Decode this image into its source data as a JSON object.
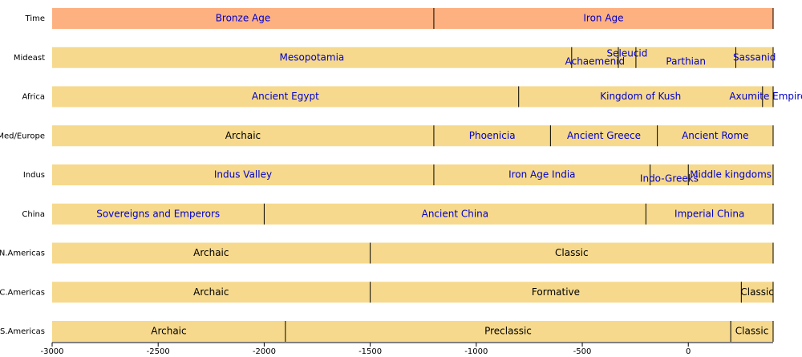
{
  "chart_data": {
    "type": "timeline",
    "xlim": [
      -3000,
      400
    ],
    "xticks": [
      -3000,
      -2500,
      -2000,
      -1500,
      -1000,
      -500,
      0
    ],
    "rows": [
      {
        "name": "Time",
        "color": "#fdb181",
        "segments": [
          {
            "label": "Bronze Age",
            "start": -3000,
            "end": -1200,
            "color": "#0000cc"
          },
          {
            "label": "Iron Age",
            "start": -1200,
            "end": 400,
            "color": "#0000cc"
          }
        ]
      },
      {
        "name": "Mideast",
        "color": "#f6d98c",
        "segments": [
          {
            "label": "Mesopotamia",
            "start": -3000,
            "end": -550,
            "color": "#0000cc"
          },
          {
            "label": "Achaemenid",
            "start": -550,
            "end": -330,
            "color": "#0000cc"
          },
          {
            "label": "Seleucid",
            "start": -330,
            "end": -247,
            "color": "#0000cc"
          },
          {
            "label": "Parthian",
            "start": -247,
            "end": 224,
            "color": "#0000cc"
          },
          {
            "label": "Sassanid",
            "start": 224,
            "end": 400,
            "color": "#0000cc"
          }
        ]
      },
      {
        "name": "Africa",
        "color": "#f6d98c",
        "segments": [
          {
            "label": "Ancient Egypt",
            "start": -3000,
            "end": -800,
            "color": "#0000cc"
          },
          {
            "label": "Kingdom of Kush",
            "start": -800,
            "end": 350,
            "color": "#0000cc"
          },
          {
            "label": "Axumite Empire",
            "start": 350,
            "end": 400,
            "color": "#0000cc"
          }
        ]
      },
      {
        "name": "Med/Europe",
        "color": "#f6d98c",
        "segments": [
          {
            "label": "Archaic",
            "start": -3000,
            "end": -1200,
            "color": "#000000"
          },
          {
            "label": "Phoenicia",
            "start": -1200,
            "end": -650,
            "color": "#0000cc"
          },
          {
            "label": "Ancient Greece",
            "start": -650,
            "end": -146,
            "color": "#0000cc"
          },
          {
            "label": "Ancient Rome",
            "start": -146,
            "end": 400,
            "color": "#0000cc"
          }
        ]
      },
      {
        "name": "Indus",
        "color": "#f6d98c",
        "segments": [
          {
            "label": "Indus Valley",
            "start": -3000,
            "end": -1200,
            "color": "#0000cc"
          },
          {
            "label": "Iron Age India",
            "start": -1200,
            "end": -180,
            "color": "#0000cc"
          },
          {
            "label": "Indo-Greeks",
            "start": -180,
            "end": 0,
            "color": "#0000cc"
          },
          {
            "label": "Middle kingdoms",
            "start": 0,
            "end": 400,
            "color": "#0000cc"
          }
        ]
      },
      {
        "name": "China",
        "color": "#f6d98c",
        "segments": [
          {
            "label": "Sovereigns and Emperors",
            "start": -3000,
            "end": -2000,
            "color": "#0000cc"
          },
          {
            "label": "Ancient China",
            "start": -2000,
            "end": -200,
            "color": "#0000cc"
          },
          {
            "label": "Imperial China",
            "start": -200,
            "end": 400,
            "color": "#0000cc"
          }
        ]
      },
      {
        "name": "N.Americas",
        "color": "#f6d98c",
        "segments": [
          {
            "label": "Archaic",
            "start": -3000,
            "end": -1500,
            "color": "#000000"
          },
          {
            "label": "Classic",
            "start": -1500,
            "end": 400,
            "color": "#000000"
          }
        ]
      },
      {
        "name": "C.Americas",
        "color": "#f6d98c",
        "segments": [
          {
            "label": "Archaic",
            "start": -3000,
            "end": -1500,
            "color": "#000000"
          },
          {
            "label": "Formative",
            "start": -1500,
            "end": 250,
            "color": "#000000"
          },
          {
            "label": "Classic",
            "start": 250,
            "end": 400,
            "color": "#000000"
          }
        ]
      },
      {
        "name": "S.Americas",
        "color": "#f6d98c",
        "segments": [
          {
            "label": "Archaic",
            "start": -3000,
            "end": -1900,
            "color": "#000000"
          },
          {
            "label": "Preclassic",
            "start": -1900,
            "end": 200,
            "color": "#000000"
          },
          {
            "label": "Classic",
            "start": 200,
            "end": 400,
            "color": "#000000"
          }
        ]
      }
    ]
  }
}
